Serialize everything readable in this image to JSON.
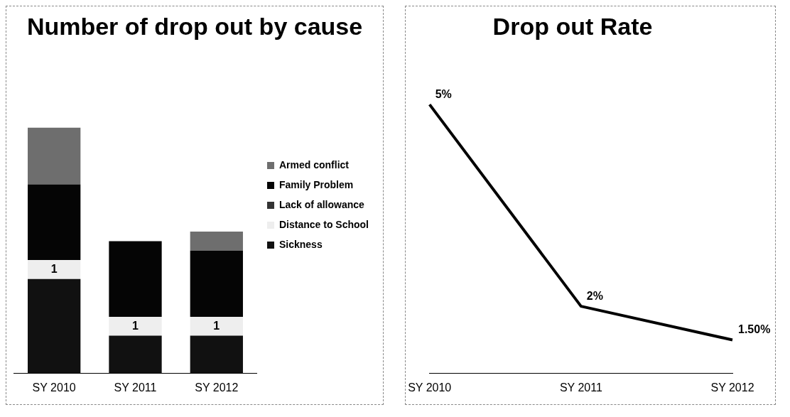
{
  "chart_data": [
    {
      "type": "bar",
      "title": "Number of drop out by cause",
      "categories": [
        "SY 2010",
        "SY 2011",
        "SY 2012"
      ],
      "stacked": true,
      "legend": "right",
      "tick_labels": "x",
      "series": [
        {
          "name": "Sickness",
          "color": "#111111",
          "values": [
            5,
            2,
            2
          ]
        },
        {
          "name": "Distance to School",
          "color": "#eeeeee",
          "values": [
            1,
            1,
            1
          ],
          "value_labels": [
            "1",
            "1",
            "1"
          ]
        },
        {
          "name": "Lack of allowance",
          "color": "#333333",
          "values": [
            0,
            0,
            0
          ]
        },
        {
          "name": "Family Problem",
          "color": "#050505",
          "values": [
            4,
            4,
            3.5
          ]
        },
        {
          "name": "Armed conflict",
          "color": "#6e6e6e",
          "values": [
            3,
            0,
            1
          ]
        }
      ]
    },
    {
      "type": "line",
      "title": "Drop out Rate",
      "categories": [
        "SY 2010",
        "SY 2011",
        "SY 2012"
      ],
      "tick_labels": "x",
      "marker": "none",
      "values": [
        5,
        2,
        1.5
      ],
      "color": "#000000",
      "value_labels": [
        "5%",
        "2%",
        "1.50%"
      ]
    }
  ]
}
